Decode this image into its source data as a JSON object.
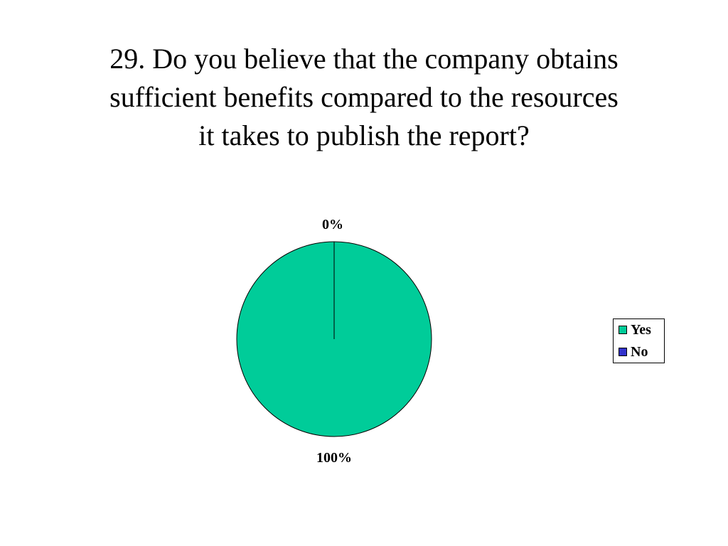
{
  "slide": {
    "title_lines": [
      "29.  Do you believe that the company obtains",
      "sufficient benefits compared to the resources",
      "it takes to publish the report?"
    ]
  },
  "chart_data": {
    "type": "pie",
    "title": "",
    "categories": [
      "Yes",
      "No"
    ],
    "values": [
      100,
      0
    ],
    "data_labels": [
      "100%",
      "0%"
    ],
    "colors": [
      "#00CC99",
      "#3333CC"
    ],
    "legend": {
      "placement": "right",
      "entries": [
        "Yes",
        "No"
      ]
    }
  }
}
